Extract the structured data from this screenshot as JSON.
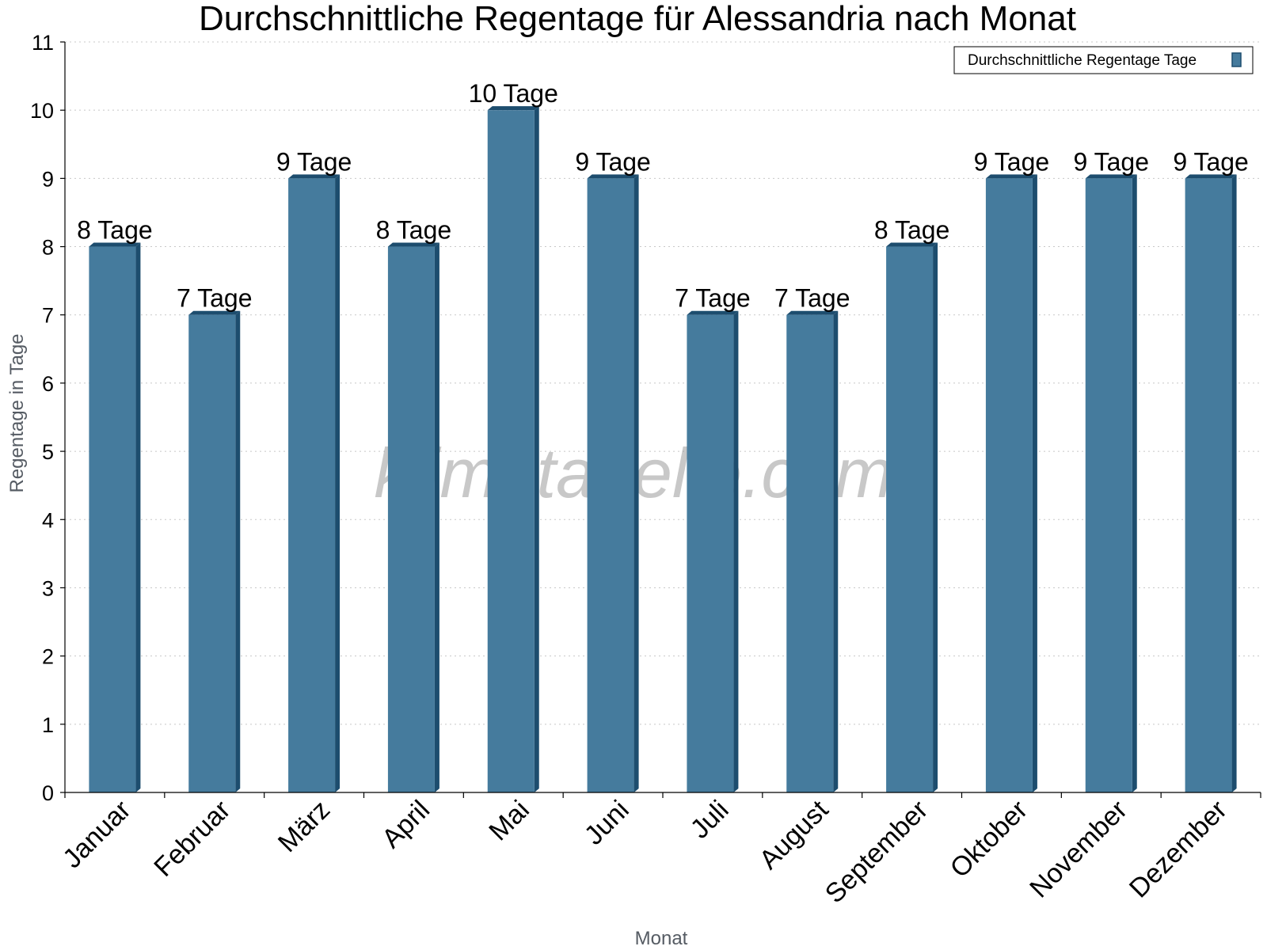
{
  "chart_data": {
    "type": "bar",
    "title": "Durchschnittliche Regentage für Alessandria nach Monat",
    "xlabel": "Monat",
    "ylabel": "Regentage in Tage",
    "ylim": [
      0,
      11
    ],
    "yticks": [
      0,
      1,
      2,
      3,
      4,
      5,
      6,
      7,
      8,
      9,
      10,
      11
    ],
    "grid": true,
    "legend_position": "top-right",
    "categories": [
      "Januar",
      "Februar",
      "März",
      "April",
      "Mai",
      "Juni",
      "Juli",
      "August",
      "September",
      "Oktober",
      "November",
      "Dezember"
    ],
    "series": [
      {
        "name": "Durchschnittliche Regentage Tage",
        "values": [
          8,
          7,
          9,
          8,
          10,
          9,
          7,
          7,
          8,
          9,
          9,
          9
        ],
        "labels": [
          "8 Tage",
          "7 Tage",
          "9 Tage",
          "8 Tage",
          "10 Tage",
          "9 Tage",
          "7 Tage",
          "7 Tage",
          "8 Tage",
          "9 Tage",
          "9 Tage",
          "9 Tage"
        ],
        "color": "#457b9d",
        "side_color": "#1d4d6e"
      }
    ]
  },
  "watermark": "klimatabelle.com"
}
